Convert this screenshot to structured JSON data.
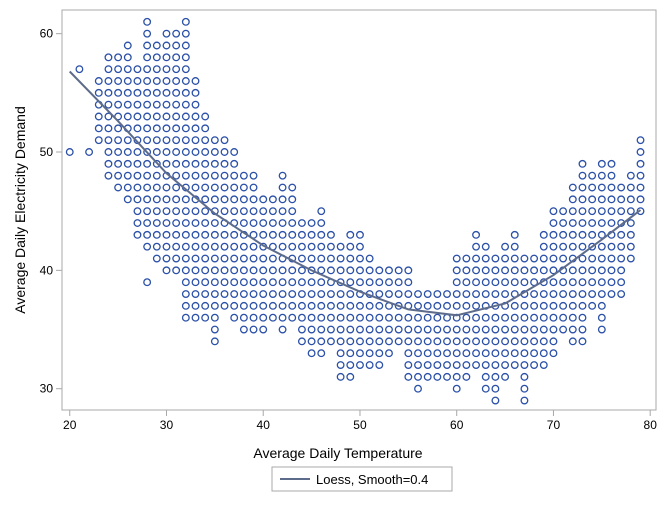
{
  "chart_data": {
    "type": "scatter",
    "xlabel": "Average Daily Temperature",
    "ylabel": "Average Daily Electricity Demand",
    "xlim": [
      19.2,
      80.6
    ],
    "ylim": [
      28.2,
      62
    ],
    "xticks": [
      20,
      30,
      40,
      50,
      60,
      70,
      80
    ],
    "yticks": [
      30,
      40,
      50,
      60
    ],
    "grid": false,
    "legend_placement": "bottom",
    "marker_color": "#2B50A8",
    "curve_color": "#5E6C8C",
    "scatter_columns": [
      {
        "x": 20,
        "y": [
          50,
          50
        ]
      },
      {
        "x": 21,
        "y": [
          57,
          57
        ]
      },
      {
        "x": 22,
        "y": [
          50,
          50
        ]
      },
      {
        "x": 23,
        "y": [
          51,
          56
        ]
      },
      {
        "x": 24,
        "y": [
          48,
          58
        ]
      },
      {
        "x": 25,
        "y": [
          47,
          58
        ]
      },
      {
        "x": 26,
        "y": [
          46,
          59
        ]
      },
      {
        "x": 27,
        "y": [
          43,
          57
        ]
      },
      {
        "x": 28,
        "y": [
          42,
          61
        ]
      },
      {
        "x": 29,
        "y": [
          41,
          59
        ]
      },
      {
        "x": 30,
        "y": [
          40,
          60
        ]
      },
      {
        "x": 31,
        "y": [
          40,
          60
        ]
      },
      {
        "x": 32,
        "y": [
          36,
          61
        ]
      },
      {
        "x": 33,
        "y": [
          36,
          56
        ]
      },
      {
        "x": 34,
        "y": [
          36,
          53
        ]
      },
      {
        "x": 35,
        "y": [
          34,
          51
        ]
      },
      {
        "x": 36,
        "y": [
          37,
          51
        ]
      },
      {
        "x": 37,
        "y": [
          36,
          50
        ]
      },
      {
        "x": 38,
        "y": [
          35,
          48
        ]
      },
      {
        "x": 39,
        "y": [
          35,
          48
        ]
      },
      {
        "x": 40,
        "y": [
          35,
          46
        ]
      },
      {
        "x": 41,
        "y": [
          36,
          46
        ]
      },
      {
        "x": 42,
        "y": [
          35,
          48
        ]
      },
      {
        "x": 43,
        "y": [
          36,
          47
        ]
      },
      {
        "x": 44,
        "y": [
          34,
          44
        ]
      },
      {
        "x": 45,
        "y": [
          33,
          44
        ]
      },
      {
        "x": 46,
        "y": [
          33,
          45
        ]
      },
      {
        "x": 47,
        "y": [
          34,
          43
        ]
      },
      {
        "x": 48,
        "y": [
          31,
          42
        ]
      },
      {
        "x": 49,
        "y": [
          31,
          43
        ]
      },
      {
        "x": 50,
        "y": [
          32,
          43
        ]
      },
      {
        "x": 51,
        "y": [
          32,
          41
        ]
      },
      {
        "x": 52,
        "y": [
          32,
          40
        ]
      },
      {
        "x": 53,
        "y": [
          33,
          40
        ]
      },
      {
        "x": 54,
        "y": [
          34,
          40
        ]
      },
      {
        "x": 55,
        "y": [
          31,
          40
        ]
      },
      {
        "x": 56,
        "y": [
          30,
          38
        ]
      },
      {
        "x": 57,
        "y": [
          31,
          38
        ]
      },
      {
        "x": 58,
        "y": [
          31,
          38
        ]
      },
      {
        "x": 59,
        "y": [
          31,
          38
        ]
      },
      {
        "x": 60,
        "y": [
          30,
          41
        ]
      },
      {
        "x": 61,
        "y": [
          31,
          41
        ]
      },
      {
        "x": 62,
        "y": [
          32,
          43
        ]
      },
      {
        "x": 63,
        "y": [
          30,
          42
        ]
      },
      {
        "x": 64,
        "y": [
          29,
          41
        ]
      },
      {
        "x": 65,
        "y": [
          31,
          42
        ]
      },
      {
        "x": 66,
        "y": [
          32,
          43
        ]
      },
      {
        "x": 67,
        "y": [
          29,
          41
        ]
      },
      {
        "x": 68,
        "y": [
          32,
          41
        ]
      },
      {
        "x": 69,
        "y": [
          32,
          43
        ]
      },
      {
        "x": 70,
        "y": [
          33,
          45
        ]
      },
      {
        "x": 71,
        "y": [
          35,
          45
        ]
      },
      {
        "x": 72,
        "y": [
          34,
          47
        ]
      },
      {
        "x": 73,
        "y": [
          34,
          49
        ]
      },
      {
        "x": 74,
        "y": [
          37,
          48
        ]
      },
      {
        "x": 75,
        "y": [
          35,
          49
        ]
      },
      {
        "x": 76,
        "y": [
          38,
          49
        ]
      },
      {
        "x": 77,
        "y": [
          38,
          47
        ]
      },
      {
        "x": 78,
        "y": [
          41,
          48
        ]
      },
      {
        "x": 79,
        "y": [
          45,
          51
        ]
      }
    ],
    "extra_points": [
      [
        28,
        39
      ]
    ],
    "loess": {
      "name": "Loess, Smooth=0.4",
      "x": [
        20,
        25,
        30,
        35,
        40,
        45,
        50,
        55,
        60,
        65,
        70,
        75,
        79
      ],
      "y": [
        56.8,
        52.6,
        48.2,
        44.8,
        42.1,
        40.0,
        38.2,
        36.7,
        36.2,
        37.2,
        39.6,
        42.6,
        45.1
      ]
    }
  }
}
